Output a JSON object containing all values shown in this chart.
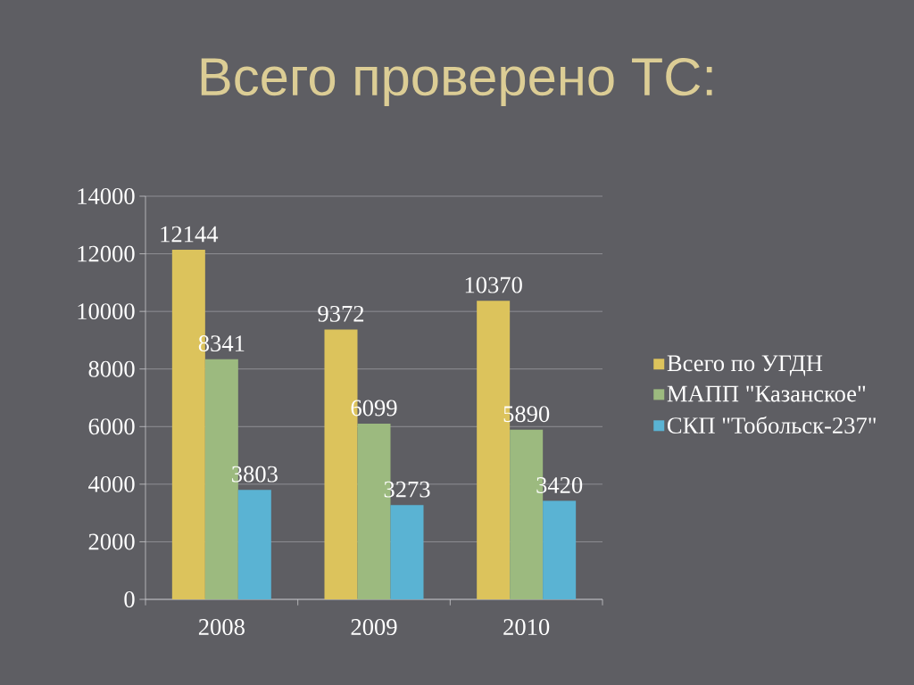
{
  "chart_data": {
    "type": "bar",
    "title": "Всего проверено ТС:",
    "categories": [
      "2008",
      "2009",
      "2010"
    ],
    "series": [
      {
        "name": "Всего по УГДН",
        "color": "#dcc35c",
        "values": [
          12144,
          9372,
          10370
        ]
      },
      {
        "name": "МАПП \"Казанское\"",
        "color": "#9cba7f",
        "values": [
          8341,
          6099,
          5890
        ]
      },
      {
        "name": "СКП \"Тобольск-237\"",
        "color": "#5ab3d3",
        "values": [
          3803,
          3273,
          3420
        ]
      }
    ],
    "ylim": [
      0,
      14000
    ],
    "yticks": [
      0,
      2000,
      4000,
      6000,
      8000,
      10000,
      12000,
      14000
    ],
    "grid": "y",
    "legend": "right",
    "data_labels": true
  }
}
